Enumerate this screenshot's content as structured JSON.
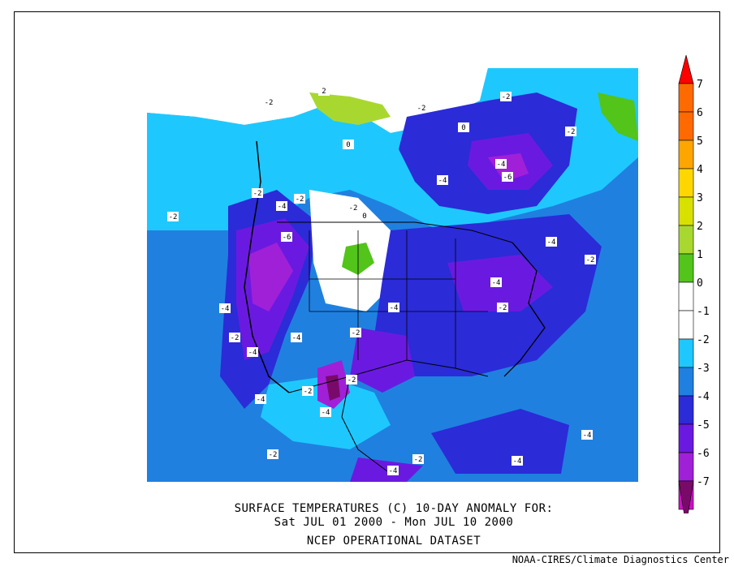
{
  "title": {
    "line1": "SURFACE TEMPERATURES (C)   10-DAY ANOMALY FOR:",
    "line2": "Sat JUL 01 2000 - Mon JUL 10 2000",
    "line3": "NCEP OPERATIONAL DATASET"
  },
  "credit": "NOAA-CIRES/Climate Diagnostics Center",
  "legend": {
    "levels": [
      {
        "label": "7",
        "color": "#ff0000"
      },
      {
        "label": "6",
        "color": "#ff6a00"
      },
      {
        "label": "5",
        "color": "#ffa500"
      },
      {
        "label": "4",
        "color": "#ffd700"
      },
      {
        "label": "3",
        "color": "#d8e000"
      },
      {
        "label": "2",
        "color": "#a8d830"
      },
      {
        "label": "1",
        "color": "#52c41a"
      },
      {
        "label": "0",
        "color": "#ffffff"
      },
      {
        "label": "-1",
        "color": "#ffffff"
      },
      {
        "label": "-2",
        "color": "#1ec8ff"
      },
      {
        "label": "-3",
        "color": "#2080e0"
      },
      {
        "label": "-4",
        "color": "#2b2bd8"
      },
      {
        "label": "-5",
        "color": "#6a1ae0"
      },
      {
        "label": "-6",
        "color": "#a020d8"
      },
      {
        "label": "-7",
        "color": "#d010c8"
      }
    ],
    "cap_bottom_color": "#7a0a6a",
    "cap_top_color": "#ff0000",
    "tail_color": "#3a0a3a"
  },
  "contour_labels": [
    "-2",
    "2",
    "-2",
    "0",
    "-2",
    "-2",
    "0",
    "-2",
    "-4",
    "-6",
    "-4",
    "-2",
    "-2",
    "-4",
    "-2",
    "0",
    "-6",
    "-4",
    "-2",
    "-4",
    "-4",
    "-2",
    "-4",
    "-2",
    "-4",
    "-2",
    "-4",
    "-2",
    "-4",
    "-2",
    "-4",
    "-2",
    "-4",
    "-4",
    "-2",
    "-4"
  ],
  "palette": {
    "light_blue": "#1ec8ff",
    "mid_blue": "#2080e0",
    "blue": "#2b2bd8",
    "violet": "#6a1ae0",
    "purple": "#a020d8",
    "magenta": "#d010c8",
    "green": "#52c41a"
  }
}
